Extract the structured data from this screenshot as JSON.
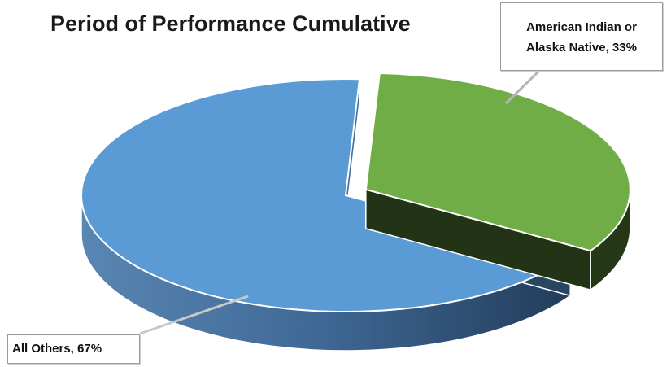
{
  "chart_data": {
    "type": "pie",
    "title": "Period of Performance Cumulative",
    "slices": [
      {
        "label": "American Indian or Alaska Native",
        "value": 33,
        "value_label": "33%",
        "color": "#70ad47"
      },
      {
        "label": "All Others",
        "value": 67,
        "value_label": "67%",
        "color": "#5b9bd5"
      }
    ],
    "style": "3d-exploded",
    "data_labels": [
      {
        "lines": [
          "American Indian or",
          "Alaska Native, 33%"
        ]
      },
      {
        "lines": [
          "All Others, 67%"
        ]
      }
    ]
  }
}
